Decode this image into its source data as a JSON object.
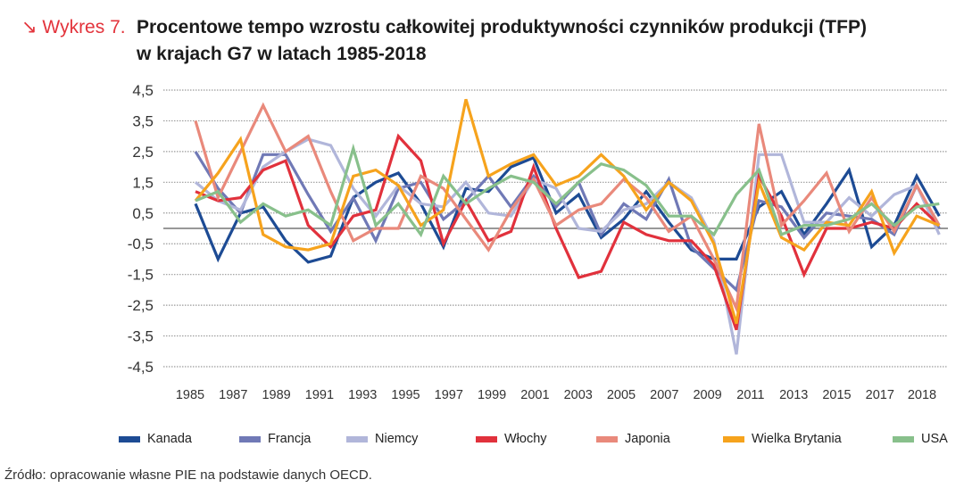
{
  "header": {
    "label": "↘ Wykres 7.",
    "title_line1": "Procentowe tempo wzrostu całkowitej produktywności czynników produkcji (TFP)",
    "title_line2": "w krajach G7 w latach 1985-2018"
  },
  "source": "Źródło: opracowanie własne PIE na podstawie danych OECD.",
  "chart_data": {
    "type": "line",
    "title": "Procentowe tempo wzrostu całkowitej produktywności czynników produkcji (TFP) w krajach G7 w latach 1985-2018",
    "xlabel": "",
    "ylabel": "",
    "ylim": [
      -4.5,
      4.5
    ],
    "y_ticks": [
      "4,5",
      "3,5",
      "2,5",
      "1,5",
      "0,5",
      "-0,5",
      "-1,5",
      "-2,5",
      "-3,5",
      "-4,5"
    ],
    "x_tick_labels": [
      "1985",
      "1987",
      "1989",
      "1991",
      "1993",
      "1995",
      "1997",
      "1999",
      "2001",
      "2003",
      "2005",
      "2007",
      "2009",
      "2011",
      "2013",
      "2015",
      "2017",
      "2018"
    ],
    "grid": "horizontal dotted",
    "legend_position": "bottom",
    "x": [
      1985,
      1986,
      1987,
      1988,
      1989,
      1990,
      1991,
      1992,
      1993,
      1994,
      1995,
      1996,
      1997,
      1998,
      1999,
      2000,
      2001,
      2002,
      2003,
      2004,
      2005,
      2006,
      2007,
      2008,
      2009,
      2010,
      2011,
      2012,
      2013,
      2014,
      2015,
      2016,
      2017,
      2018
    ],
    "series": [
      {
        "name": "Kanada",
        "color": "#1d4b94",
        "values": [
          0.8,
          -1.0,
          0.5,
          0.7,
          -0.4,
          -1.1,
          -0.9,
          1.0,
          1.5,
          1.8,
          0.8,
          -0.6,
          1.3,
          1.2,
          2.0,
          2.3,
          0.5,
          1.1,
          -0.3,
          0.3,
          1.2,
          0.2,
          -0.7,
          -1.0,
          -1.0,
          0.7,
          1.2,
          -0.2,
          0.8,
          1.9,
          -0.6,
          0.1,
          1.7,
          0.4
        ]
      },
      {
        "name": "Francja",
        "color": "#7079b6",
        "values": [
          2.5,
          1.3,
          0.5,
          2.4,
          2.4,
          1.1,
          -0.1,
          1.0,
          -0.4,
          1.3,
          1.5,
          0.3,
          0.9,
          1.7,
          0.7,
          1.7,
          0.7,
          1.5,
          -0.2,
          0.8,
          0.3,
          1.6,
          -0.6,
          -1.3,
          -2.0,
          0.9,
          0.7,
          -0.3,
          0.5,
          0.4,
          0.3,
          -0.2,
          1.4,
          0.0
        ]
      },
      {
        "name": "Niemcy",
        "color": "#b1b6da",
        "values": [
          1.5,
          0.9,
          0.6,
          2.0,
          2.5,
          2.9,
          2.7,
          1.3,
          0.4,
          1.4,
          0.8,
          0.7,
          1.5,
          0.5,
          0.4,
          1.6,
          1.3,
          0.0,
          -0.1,
          0.6,
          0.8,
          1.5,
          1.0,
          -0.4,
          -4.1,
          2.4,
          2.4,
          0.2,
          0.2,
          1.0,
          0.4,
          1.1,
          1.4,
          -0.2
        ]
      },
      {
        "name": "Włochy",
        "color": "#e1313c",
        "values": [
          1.2,
          0.9,
          1.0,
          1.9,
          2.2,
          0.1,
          -0.6,
          0.4,
          0.6,
          3.0,
          2.2,
          -0.5,
          0.9,
          -0.4,
          -0.1,
          2.0,
          0.0,
          -1.6,
          -1.4,
          0.2,
          -0.2,
          -0.4,
          -0.4,
          -1.2,
          -3.3,
          1.7,
          0.4,
          -1.5,
          0.0,
          0.0,
          0.2,
          0.0,
          0.8,
          0.1
        ]
      },
      {
        "name": "Japonia",
        "color": "#e9897b",
        "values": [
          3.5,
          1.0,
          2.5,
          4.0,
          2.5,
          3.0,
          1.2,
          -0.4,
          0.0,
          0.0,
          1.7,
          1.3,
          0.3,
          -0.7,
          0.6,
          1.6,
          0.1,
          0.6,
          0.8,
          1.6,
          1.0,
          -0.1,
          0.4,
          -1.0,
          -2.6,
          3.4,
          0.1,
          0.9,
          1.8,
          -0.1,
          1.0,
          -0.1,
          1.4,
          0.1
        ]
      },
      {
        "name": "Wielka Brytania",
        "color": "#f6a31d",
        "values": [
          0.9,
          1.8,
          2.9,
          -0.2,
          -0.6,
          -0.7,
          -0.5,
          1.7,
          1.9,
          1.4,
          0.1,
          0.6,
          4.2,
          1.7,
          2.1,
          2.4,
          1.4,
          1.7,
          2.4,
          1.7,
          0.6,
          1.5,
          0.9,
          -0.5,
          -3.1,
          1.5,
          -0.3,
          -0.7,
          0.2,
          0.1,
          1.2,
          -0.8,
          0.4,
          0.1
        ]
      },
      {
        "name": "USA",
        "color": "#88c08b",
        "values": [
          0.9,
          1.2,
          0.2,
          0.8,
          0.4,
          0.6,
          0.1,
          2.6,
          0.1,
          0.8,
          -0.2,
          1.7,
          0.8,
          1.3,
          1.7,
          1.5,
          0.8,
          1.5,
          2.1,
          1.9,
          1.4,
          0.4,
          0.4,
          -0.2,
          1.1,
          1.9,
          -0.2,
          0.1,
          0.1,
          0.3,
          0.8,
          0.1,
          0.7,
          0.8
        ]
      }
    ]
  }
}
